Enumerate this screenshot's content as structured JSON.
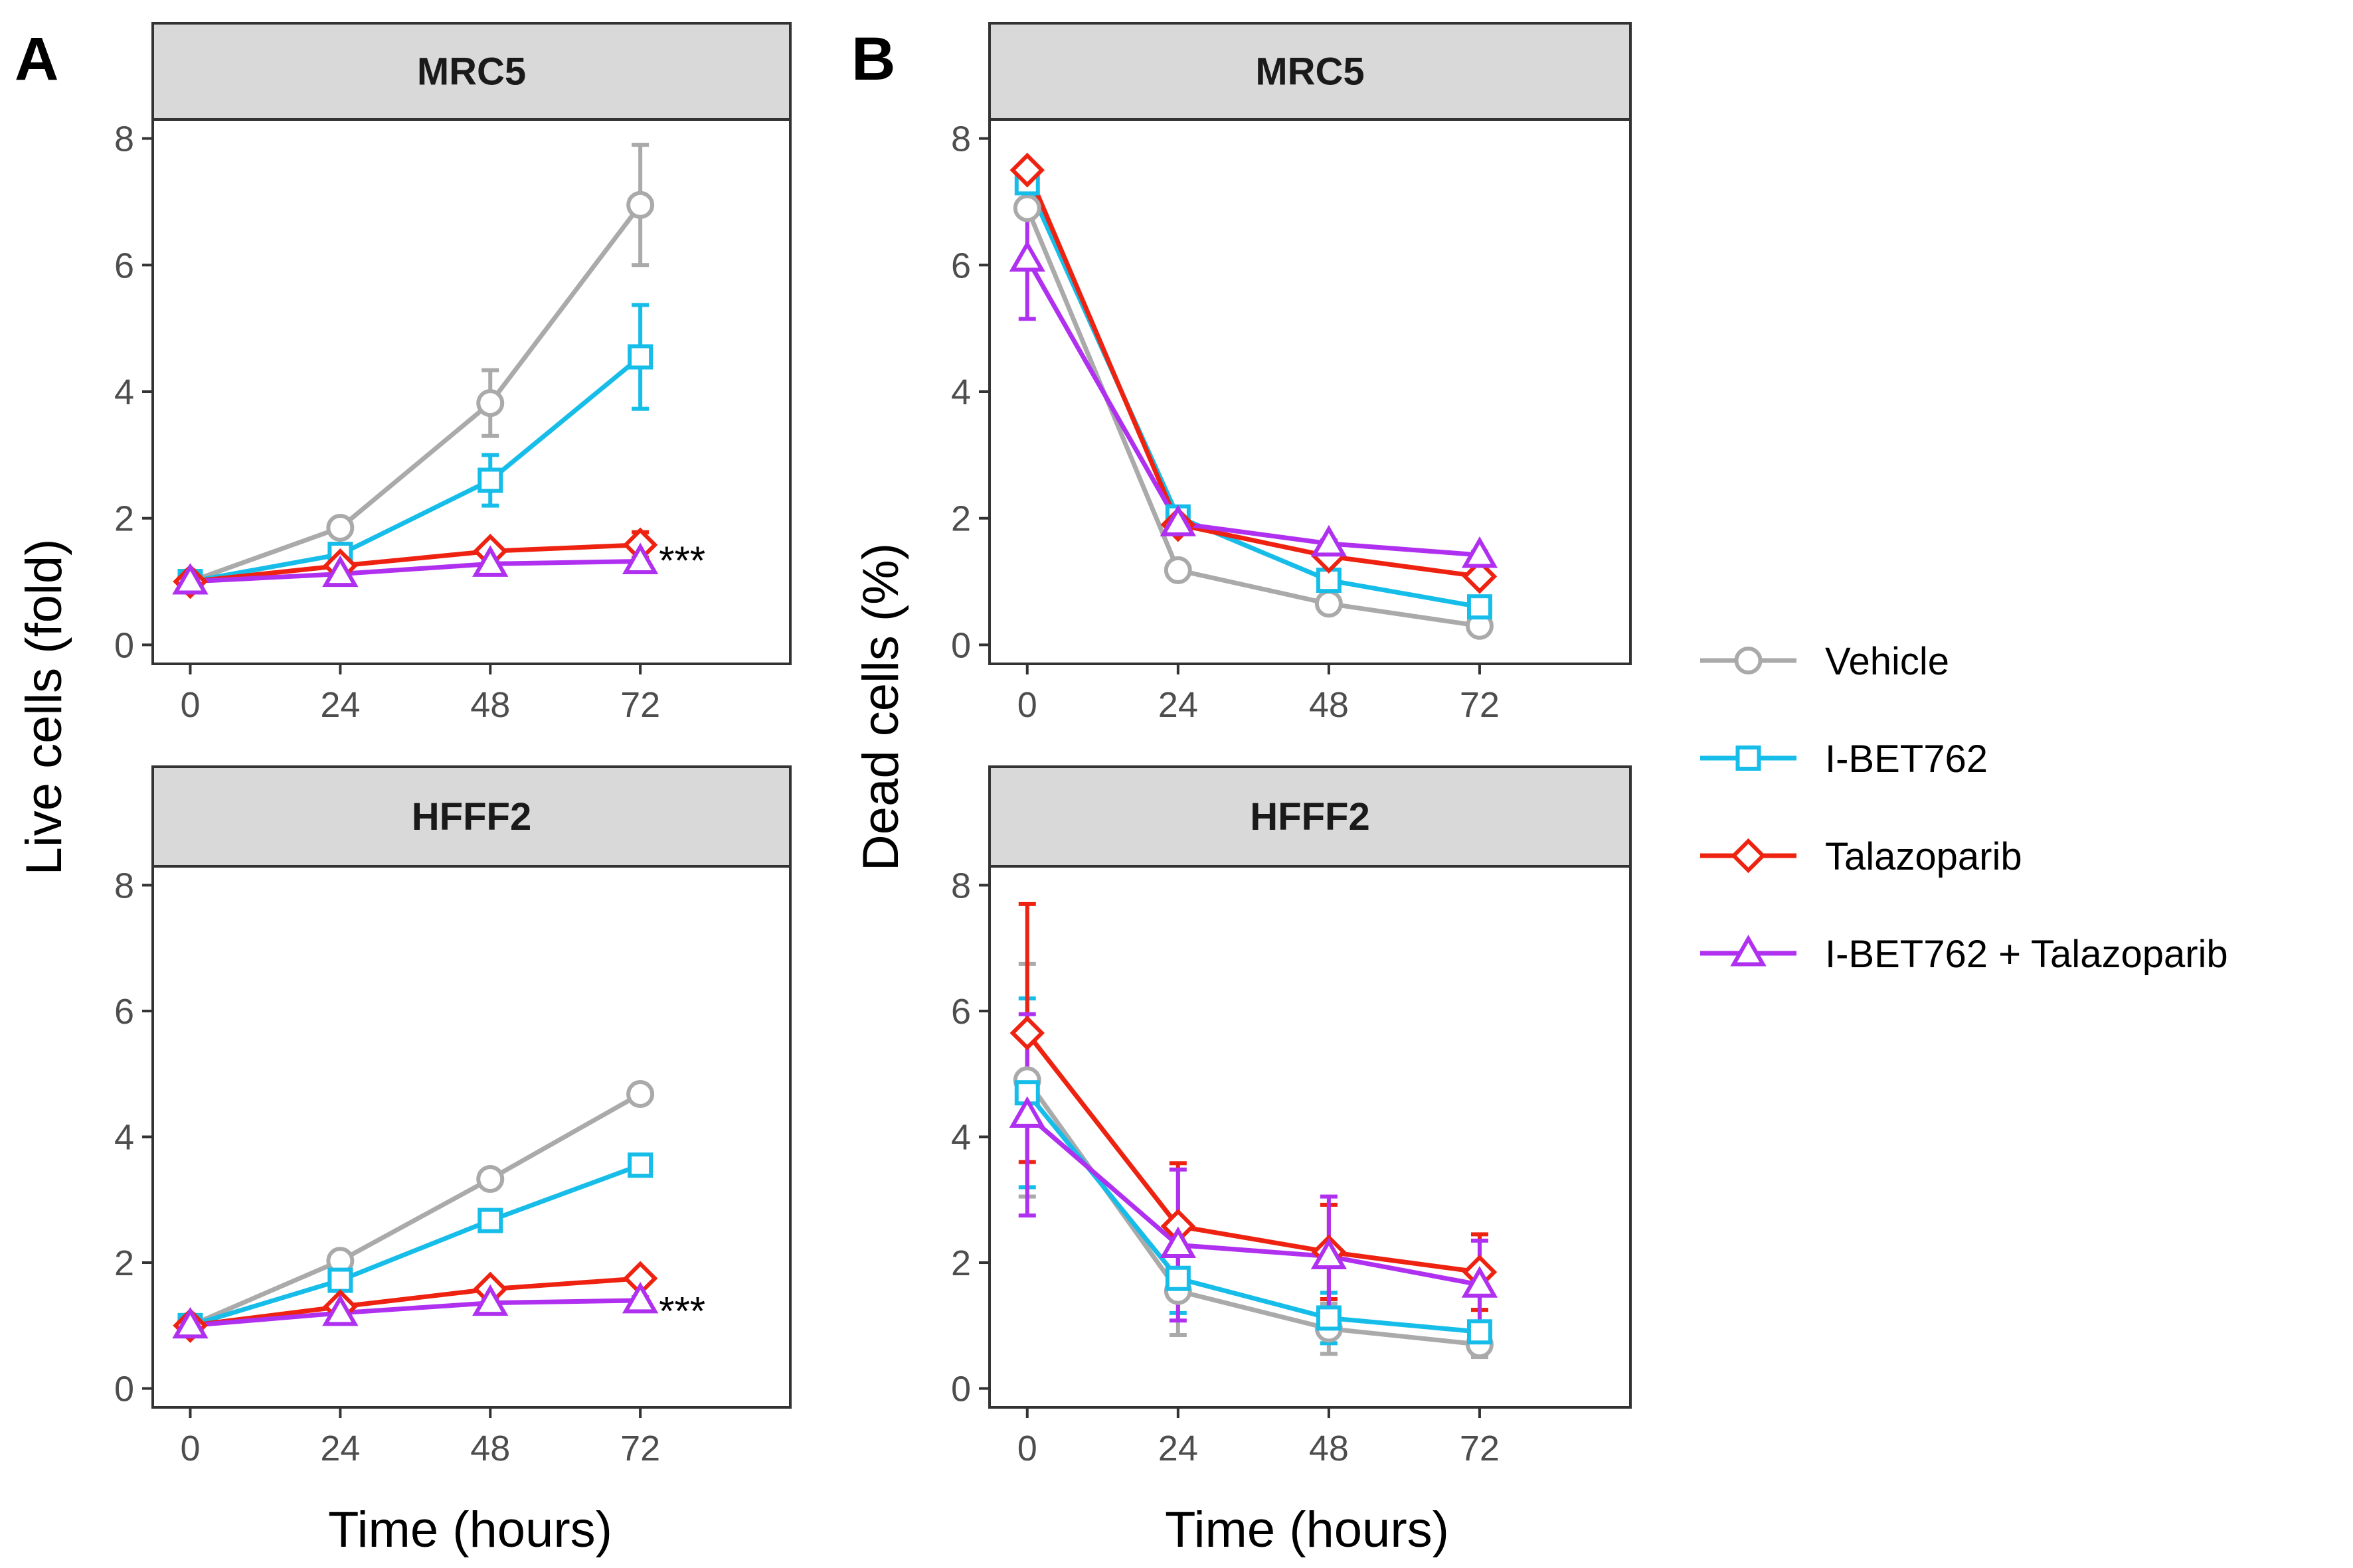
{
  "figure": {
    "panel_letters": [
      "A",
      "B"
    ]
  },
  "colors": {
    "Vehicle": "#aaaaaa",
    "I-BET762": "#17bde9",
    "Talazoparib": "#ee2211",
    "I-BET762 + Talazoparib": "#b030f0",
    "strip_fill": "#d9d9d9",
    "frame": "#333333"
  },
  "legend": {
    "entries": [
      {
        "label": "Vehicle",
        "shape": "circle-icon"
      },
      {
        "label": "I-BET762",
        "shape": "square-icon"
      },
      {
        "label": "Talazoparib",
        "shape": "diamond-icon"
      },
      {
        "label": "I-BET762 + Talazoparib",
        "shape": "triangle-icon"
      }
    ]
  },
  "chart_data": [
    {
      "id": "A-MRC5",
      "type": "line",
      "panel": "A",
      "strip": "MRC5",
      "x": [
        0,
        24,
        48,
        72
      ],
      "xlim": [
        -6,
        96
      ],
      "ylim": [
        -0.3,
        8.3
      ],
      "xticks": [
        0,
        24,
        48,
        72
      ],
      "yticks": [
        0,
        2,
        4,
        6,
        8
      ],
      "annotation": {
        "text": "***",
        "x": 72,
        "y": 1.45
      },
      "series": [
        {
          "name": "Vehicle",
          "values": [
            1.0,
            1.85,
            3.82,
            6.95
          ],
          "err": [
            0.05,
            0.08,
            0.52,
            0.95
          ]
        },
        {
          "name": "I-BET762",
          "values": [
            1.0,
            1.43,
            2.6,
            4.55
          ],
          "err": [
            0.05,
            0.1,
            0.4,
            0.82
          ]
        },
        {
          "name": "Talazoparib",
          "values": [
            1.0,
            1.25,
            1.48,
            1.58
          ],
          "err": [
            0.05,
            0.05,
            0.1,
            0.2
          ]
        },
        {
          "name": "I-BET762 + Talazoparib",
          "values": [
            1.0,
            1.12,
            1.28,
            1.32
          ],
          "err": [
            0.05,
            0.05,
            0.06,
            0.15
          ]
        }
      ]
    },
    {
      "id": "A-HFFF2",
      "type": "line",
      "panel": "A",
      "strip": "HFFF2",
      "x": [
        0,
        24,
        48,
        72
      ],
      "xlim": [
        -6,
        96
      ],
      "ylim": [
        -0.3,
        8.3
      ],
      "xticks": [
        0,
        24,
        48,
        72
      ],
      "yticks": [
        0,
        2,
        4,
        6,
        8
      ],
      "annotation": {
        "text": "***",
        "x": 72,
        "y": 1.35
      },
      "series": [
        {
          "name": "Vehicle",
          "values": [
            1.0,
            2.03,
            3.33,
            4.68
          ],
          "err": [
            0.05,
            0.05,
            0.08,
            0.15
          ]
        },
        {
          "name": "I-BET762",
          "values": [
            1.0,
            1.72,
            2.67,
            3.55
          ],
          "err": [
            0.05,
            0.05,
            0.08,
            0.08
          ]
        },
        {
          "name": "Talazoparib",
          "values": [
            1.0,
            1.3,
            1.58,
            1.75
          ],
          "err": [
            0.05,
            0.05,
            0.05,
            0.05
          ]
        },
        {
          "name": "I-BET762 + Talazoparib",
          "values": [
            1.0,
            1.2,
            1.36,
            1.4
          ],
          "err": [
            0.05,
            0.05,
            0.05,
            0.05
          ]
        }
      ]
    },
    {
      "id": "B-MRC5",
      "type": "line",
      "panel": "B",
      "strip": "MRC5",
      "x": [
        0,
        24,
        48,
        72
      ],
      "xlim": [
        -6,
        96
      ],
      "ylim": [
        -0.3,
        8.3
      ],
      "xticks": [
        0,
        24,
        48,
        72
      ],
      "yticks": [
        0,
        2,
        4,
        6,
        8
      ],
      "series": [
        {
          "name": "Vehicle",
          "values": [
            6.9,
            1.18,
            0.65,
            0.3
          ],
          "err": [
            0.1,
            0.05,
            0.05,
            0.05
          ]
        },
        {
          "name": "I-BET762",
          "values": [
            7.3,
            2.02,
            1.02,
            0.6
          ],
          "err": [
            0.1,
            0.05,
            0.05,
            0.05
          ]
        },
        {
          "name": "Talazoparib",
          "values": [
            7.5,
            1.9,
            1.4,
            1.08
          ],
          "err": [
            0.05,
            0.05,
            0.05,
            0.05
          ]
        },
        {
          "name": "I-BET762 + Talazoparib",
          "values": [
            6.1,
            1.92,
            1.6,
            1.42
          ],
          "err": [
            0.95,
            0.05,
            0.05,
            0.05
          ]
        }
      ]
    },
    {
      "id": "B-HFFF2",
      "type": "line",
      "panel": "B",
      "strip": "HFFF2",
      "x": [
        0,
        24,
        48,
        72
      ],
      "xlim": [
        -6,
        96
      ],
      "ylim": [
        -0.3,
        8.3
      ],
      "xticks": [
        0,
        24,
        48,
        72
      ],
      "yticks": [
        0,
        2,
        4,
        6,
        8
      ],
      "series": [
        {
          "name": "Vehicle",
          "values": [
            4.9,
            1.55,
            0.95,
            0.7
          ],
          "err": [
            1.85,
            0.7,
            0.4,
            0.2
          ]
        },
        {
          "name": "I-BET762",
          "values": [
            4.7,
            1.75,
            1.12,
            0.9
          ],
          "err": [
            1.5,
            0.55,
            0.4,
            0.35
          ]
        },
        {
          "name": "Talazoparib",
          "values": [
            5.65,
            2.58,
            2.17,
            1.85
          ],
          "err": [
            2.05,
            1.0,
            0.75,
            0.6
          ]
        },
        {
          "name": "I-BET762 + Talazoparib",
          "values": [
            4.35,
            2.28,
            2.1,
            1.65
          ],
          "err": [
            1.6,
            1.2,
            0.95,
            0.7
          ]
        }
      ]
    }
  ],
  "axes": {
    "A_ylabel": "Live cells (fold)",
    "B_ylabel": "Dead cells (%)",
    "xlabel": "Time (hours)"
  }
}
